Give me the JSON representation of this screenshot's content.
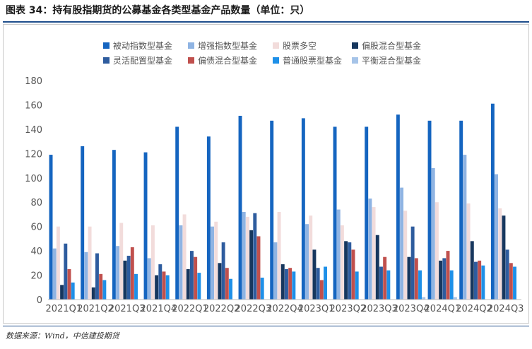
{
  "header": {
    "title": "图表 34：持有股指期货的公募基金各类型基金产品数量（单位：只）"
  },
  "footer": {
    "source": "数据来源：Wind，中信建投期货"
  },
  "chart_data": {
    "type": "bar",
    "title": "持有股指期货的公募基金各类型基金产品数量（单位：只）",
    "xlabel": "",
    "ylabel": "",
    "ylim": [
      0,
      180
    ],
    "yticks": [
      0,
      20,
      40,
      60,
      80,
      100,
      120,
      140,
      160,
      180
    ],
    "grid": false,
    "legend_position": "top",
    "categories": [
      "2021Q1",
      "2021Q2",
      "2021Q3",
      "2021Q4",
      "2022Q1",
      "2022Q2",
      "2022Q3",
      "2022Q4",
      "2023Q1",
      "2023Q2",
      "2023Q3",
      "2023Q4",
      "2024Q1",
      "2024Q2",
      "2024Q3"
    ],
    "series": [
      {
        "name": "被动指数型基金",
        "color": "#1565c0",
        "values": [
          119,
          126,
          123,
          121,
          142,
          134,
          151,
          147,
          149,
          142,
          142,
          152,
          147,
          147,
          161
        ]
      },
      {
        "name": "增强指数型基金",
        "color": "#8fb4e3",
        "values": [
          42,
          39,
          44,
          34,
          61,
          60,
          72,
          47,
          62,
          74,
          83,
          92,
          108,
          119,
          103
        ]
      },
      {
        "name": "股票多空",
        "color": "#f2dcdb",
        "values": [
          60,
          60,
          63,
          61,
          70,
          64,
          68,
          72,
          69,
          61,
          76,
          73,
          80,
          79,
          75
        ]
      },
      {
        "name": "偏股混合型基金",
        "color": "#17375e",
        "values": [
          12,
          10,
          32,
          20,
          25,
          30,
          57,
          29,
          41,
          48,
          53,
          35,
          32,
          48,
          69
        ]
      },
      {
        "name": "灵活配置型基金",
        "color": "#2e5c9e",
        "values": [
          46,
          38,
          36,
          29,
          40,
          47,
          71,
          25,
          26,
          47,
          27,
          60,
          34,
          31,
          41
        ]
      },
      {
        "name": "偏债混合型基金",
        "color": "#c0504d",
        "values": [
          25,
          21,
          43,
          23,
          35,
          26,
          52,
          26,
          16,
          41,
          35,
          34,
          40,
          32,
          30
        ]
      },
      {
        "name": "普通股票型基金",
        "color": "#1e90e8",
        "values": [
          14,
          16,
          21,
          20,
          22,
          17,
          18,
          23,
          27,
          23,
          24,
          24,
          24,
          28,
          27
        ]
      },
      {
        "name": "平衡混合型基金",
        "color": "#a6c4e8",
        "values": [
          0,
          0,
          0,
          0,
          0,
          0,
          0,
          0,
          0,
          0,
          0,
          2,
          2,
          0,
          0
        ]
      }
    ]
  }
}
